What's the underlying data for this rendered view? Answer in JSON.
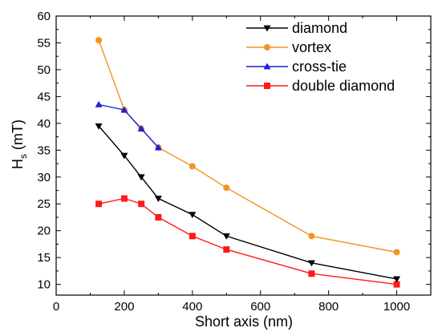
{
  "chart_data": {
    "type": "line",
    "xlabel": "Short axis (nm)",
    "ylabel_main": "H",
    "ylabel_sub": "s",
    "ylabel_unit": " (mT)",
    "xlim": [
      0,
      1100
    ],
    "ylim": [
      8,
      60
    ],
    "x_ticks": [
      0,
      200,
      400,
      600,
      800,
      1000
    ],
    "y_ticks": [
      10,
      15,
      20,
      25,
      30,
      35,
      40,
      45,
      50,
      55,
      60
    ],
    "legend_position": "top-right",
    "series": [
      {
        "name": "diamond",
        "color": "#000000",
        "marker": "triangle-down",
        "points": [
          [
            125,
            39.5
          ],
          [
            200,
            34
          ],
          [
            250,
            30
          ],
          [
            300,
            26
          ],
          [
            400,
            23
          ],
          [
            500,
            19
          ],
          [
            750,
            14
          ],
          [
            1000,
            11
          ]
        ]
      },
      {
        "name": "vortex",
        "color": "#f5921e",
        "marker": "circle",
        "points": [
          [
            125,
            55.5
          ],
          [
            200,
            42.5
          ],
          [
            250,
            39
          ],
          [
            300,
            35.5
          ],
          [
            400,
            32
          ],
          [
            500,
            28
          ],
          [
            750,
            19
          ],
          [
            1000,
            16
          ]
        ]
      },
      {
        "name": "cross-tie",
        "color": "#1f1fd6",
        "marker": "triangle-up",
        "points": [
          [
            125,
            43.5
          ],
          [
            200,
            42.5
          ],
          [
            250,
            39
          ],
          [
            300,
            35.5
          ]
        ]
      },
      {
        "name": "double diamond",
        "color": "#ff1a1a",
        "marker": "square",
        "points": [
          [
            125,
            25
          ],
          [
            200,
            26
          ],
          [
            250,
            25
          ],
          [
            300,
            22.5
          ],
          [
            400,
            19
          ],
          [
            500,
            16.5
          ],
          [
            750,
            12
          ],
          [
            1000,
            10
          ]
        ]
      }
    ]
  }
}
